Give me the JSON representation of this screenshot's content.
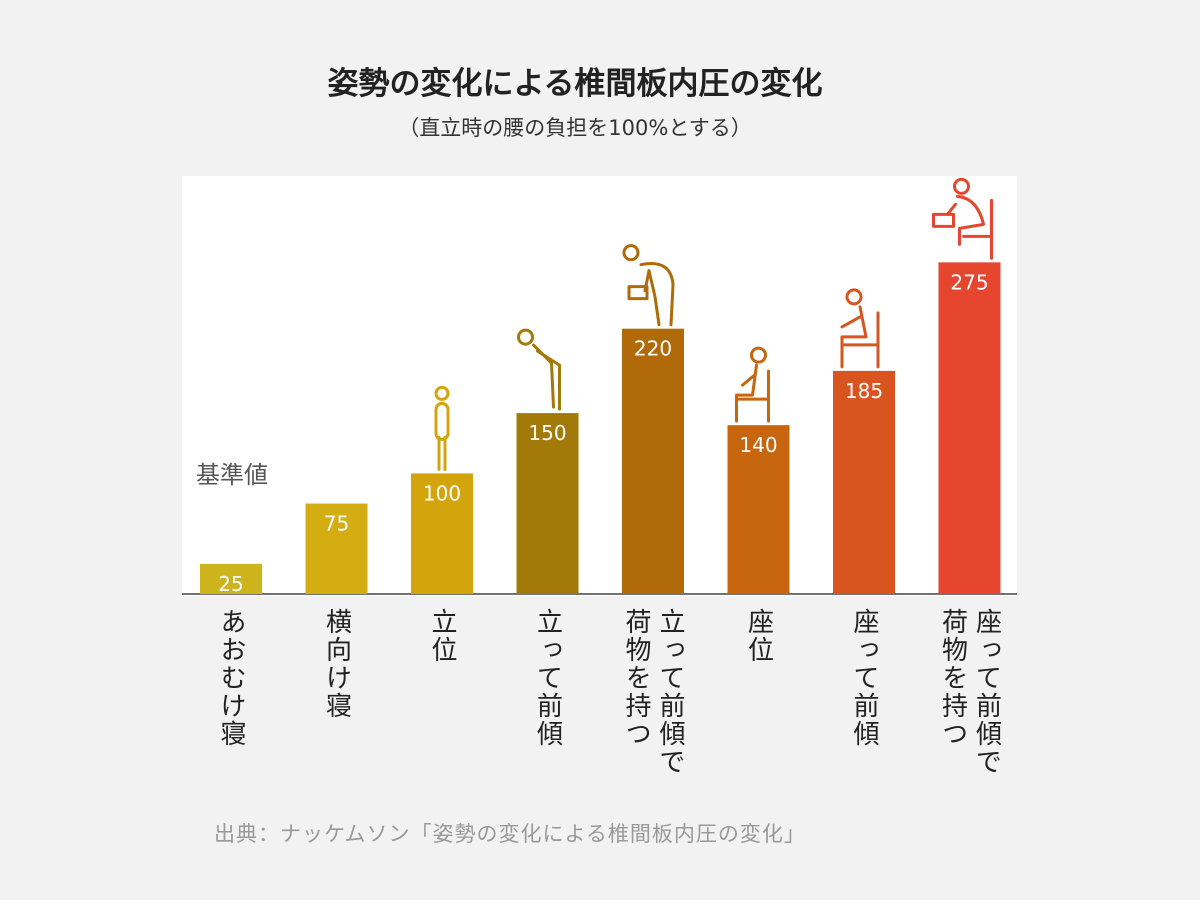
{
  "title": "姿勢の変化による椎間板内圧の変化",
  "subtitle": "（直立時の腰の負担を100%とする）",
  "baseline_label": "基準値",
  "source": "出典：ナッケムソン「姿勢の変化による椎間板内圧の変化」",
  "colors": {
    "bars": [
      "#cdb31c",
      "#d3ad12",
      "#d4a40c",
      "#a37a0a",
      "#b06a0a",
      "#c8650f",
      "#d95520",
      "#e6462e"
    ],
    "baseline": "#b03a2e",
    "baseline_left": "#7a6d1a",
    "value_text": "#ffffff"
  },
  "icons": [
    "",
    "",
    "standing-person-icon",
    "bowing-person-icon",
    "lifting-box-person-icon",
    "seated-person-icon",
    "seated-leaning-person-icon",
    "seated-lifting-box-person-icon"
  ],
  "chart_data": {
    "type": "bar",
    "title": "姿勢の変化による椎間板内圧の変化",
    "subtitle": "（直立時の腰の負担を100%とする）",
    "categories": [
      "あおむけ寝",
      "横向け寝",
      "立位",
      "立って前傾",
      "立って前傾で荷物を持つ",
      "座位",
      "座って前傾",
      "座って前傾で荷物を持つ"
    ],
    "category_lines": [
      [
        "あおむけ寝"
      ],
      [
        "横向け寝"
      ],
      [
        "立位"
      ],
      [
        "立って前傾"
      ],
      [
        "立って前傾で",
        "荷物を持つ"
      ],
      [
        "座位"
      ],
      [
        "座って前傾"
      ],
      [
        "座って前傾で",
        "荷物を持つ"
      ]
    ],
    "values": [
      25,
      75,
      100,
      150,
      220,
      140,
      185,
      275
    ],
    "value_labels": [
      "25",
      "75",
      "100",
      "150",
      "220",
      "140",
      "185",
      "275"
    ],
    "reference_line": {
      "value": 100,
      "label": "基準値"
    },
    "ylim": [
      0,
      290
    ],
    "grid": false,
    "legend": "none"
  }
}
